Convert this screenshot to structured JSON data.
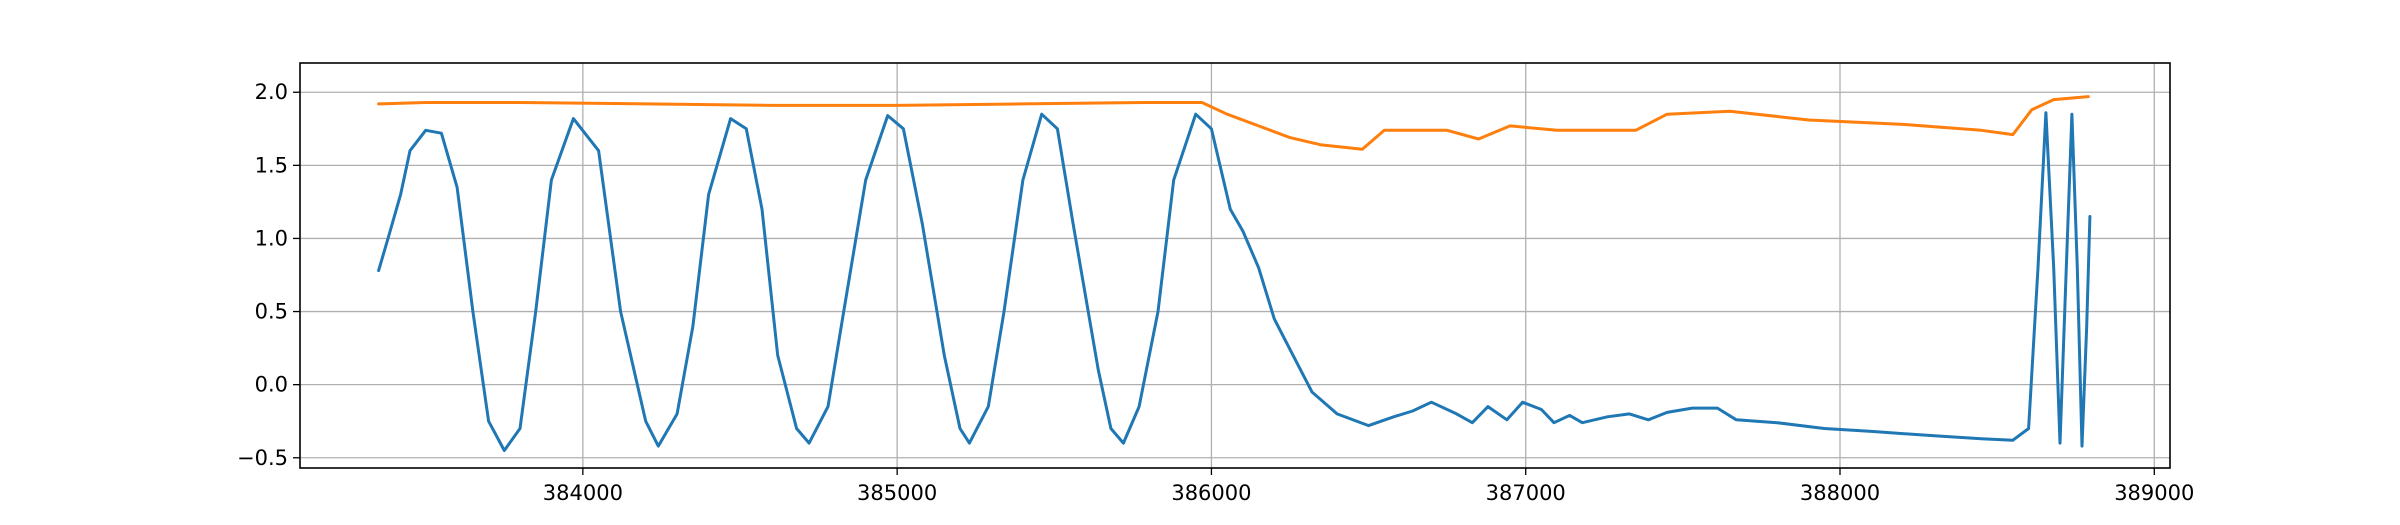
{
  "chart_data": {
    "type": "line",
    "title": "",
    "xlabel": "",
    "ylabel": "",
    "xlim": [
      383100,
      389050
    ],
    "ylim": [
      -0.57,
      2.2
    ],
    "grid": true,
    "xticks": [
      {
        "value": 384000,
        "label": "384000"
      },
      {
        "value": 385000,
        "label": "385000"
      },
      {
        "value": 386000,
        "label": "386000"
      },
      {
        "value": 387000,
        "label": "387000"
      },
      {
        "value": 388000,
        "label": "388000"
      },
      {
        "value": 389000,
        "label": "389000"
      }
    ],
    "yticks": [
      {
        "value": -0.5,
        "label": "−0.5"
      },
      {
        "value": 0.0,
        "label": "0.0"
      },
      {
        "value": 0.5,
        "label": "0.5"
      },
      {
        "value": 1.0,
        "label": "1.0"
      },
      {
        "value": 1.5,
        "label": "1.5"
      },
      {
        "value": 2.0,
        "label": "2.0"
      }
    ],
    "series": [
      {
        "color": "#1f77b4",
        "points": [
          [
            383350,
            0.78
          ],
          [
            383380,
            1.0
          ],
          [
            383420,
            1.3
          ],
          [
            383450,
            1.6
          ],
          [
            383500,
            1.74
          ],
          [
            383550,
            1.72
          ],
          [
            383600,
            1.35
          ],
          [
            383650,
            0.5
          ],
          [
            383700,
            -0.25
          ],
          [
            383750,
            -0.45
          ],
          [
            383800,
            -0.3
          ],
          [
            383850,
            0.5
          ],
          [
            383900,
            1.4
          ],
          [
            383970,
            1.82
          ],
          [
            384050,
            1.6
          ],
          [
            384120,
            0.5
          ],
          [
            384200,
            -0.25
          ],
          [
            384240,
            -0.42
          ],
          [
            384300,
            -0.2
          ],
          [
            384350,
            0.4
          ],
          [
            384400,
            1.3
          ],
          [
            384470,
            1.82
          ],
          [
            384520,
            1.75
          ],
          [
            384570,
            1.2
          ],
          [
            384620,
            0.2
          ],
          [
            384680,
            -0.3
          ],
          [
            384720,
            -0.4
          ],
          [
            384780,
            -0.15
          ],
          [
            384830,
            0.5
          ],
          [
            384900,
            1.4
          ],
          [
            384970,
            1.84
          ],
          [
            385020,
            1.75
          ],
          [
            385080,
            1.1
          ],
          [
            385150,
            0.2
          ],
          [
            385200,
            -0.3
          ],
          [
            385230,
            -0.4
          ],
          [
            385290,
            -0.15
          ],
          [
            385340,
            0.5
          ],
          [
            385400,
            1.4
          ],
          [
            385460,
            1.85
          ],
          [
            385510,
            1.75
          ],
          [
            385560,
            1.1
          ],
          [
            385640,
            0.1
          ],
          [
            385680,
            -0.3
          ],
          [
            385720,
            -0.4
          ],
          [
            385770,
            -0.15
          ],
          [
            385830,
            0.5
          ],
          [
            385880,
            1.4
          ],
          [
            385950,
            1.85
          ],
          [
            386000,
            1.75
          ],
          [
            386060,
            1.2
          ],
          [
            386100,
            1.05
          ],
          [
            386150,
            0.8
          ],
          [
            386200,
            0.45
          ],
          [
            386260,
            0.2
          ],
          [
            386320,
            -0.05
          ],
          [
            386400,
            -0.2
          ],
          [
            386500,
            -0.28
          ],
          [
            386580,
            -0.22
          ],
          [
            386640,
            -0.18
          ],
          [
            386700,
            -0.12
          ],
          [
            386780,
            -0.2
          ],
          [
            386830,
            -0.26
          ],
          [
            386880,
            -0.15
          ],
          [
            386940,
            -0.24
          ],
          [
            386990,
            -0.12
          ],
          [
            387050,
            -0.17
          ],
          [
            387090,
            -0.26
          ],
          [
            387140,
            -0.21
          ],
          [
            387180,
            -0.26
          ],
          [
            387260,
            -0.22
          ],
          [
            387330,
            -0.2
          ],
          [
            387390,
            -0.24
          ],
          [
            387450,
            -0.19
          ],
          [
            387530,
            -0.16
          ],
          [
            387610,
            -0.16
          ],
          [
            387670,
            -0.24
          ],
          [
            387800,
            -0.26
          ],
          [
            387950,
            -0.3
          ],
          [
            388100,
            -0.32
          ],
          [
            388300,
            -0.35
          ],
          [
            388450,
            -0.37
          ],
          [
            388550,
            -0.38
          ],
          [
            388600,
            -0.3
          ],
          [
            388630,
            0.8
          ],
          [
            388655,
            1.86
          ],
          [
            388680,
            0.8
          ],
          [
            388700,
            -0.4
          ],
          [
            388720,
            0.8
          ],
          [
            388738,
            1.85
          ],
          [
            388755,
            0.8
          ],
          [
            388770,
            -0.42
          ],
          [
            388785,
            0.4
          ],
          [
            388795,
            1.15
          ]
        ]
      },
      {
        "color": "#ff7f0e",
        "points": [
          [
            383350,
            1.92
          ],
          [
            383500,
            1.93
          ],
          [
            383800,
            1.93
          ],
          [
            384200,
            1.92
          ],
          [
            384600,
            1.91
          ],
          [
            385000,
            1.91
          ],
          [
            385400,
            1.92
          ],
          [
            385800,
            1.93
          ],
          [
            385970,
            1.93
          ],
          [
            386050,
            1.85
          ],
          [
            386150,
            1.77
          ],
          [
            386250,
            1.69
          ],
          [
            386350,
            1.64
          ],
          [
            386480,
            1.61
          ],
          [
            386550,
            1.74
          ],
          [
            386750,
            1.74
          ],
          [
            386850,
            1.68
          ],
          [
            386950,
            1.77
          ],
          [
            387100,
            1.74
          ],
          [
            387350,
            1.74
          ],
          [
            387450,
            1.85
          ],
          [
            387650,
            1.87
          ],
          [
            387900,
            1.81
          ],
          [
            388200,
            1.78
          ],
          [
            388450,
            1.74
          ],
          [
            388550,
            1.71
          ],
          [
            388610,
            1.88
          ],
          [
            388680,
            1.95
          ],
          [
            388790,
            1.97
          ]
        ]
      }
    ]
  }
}
